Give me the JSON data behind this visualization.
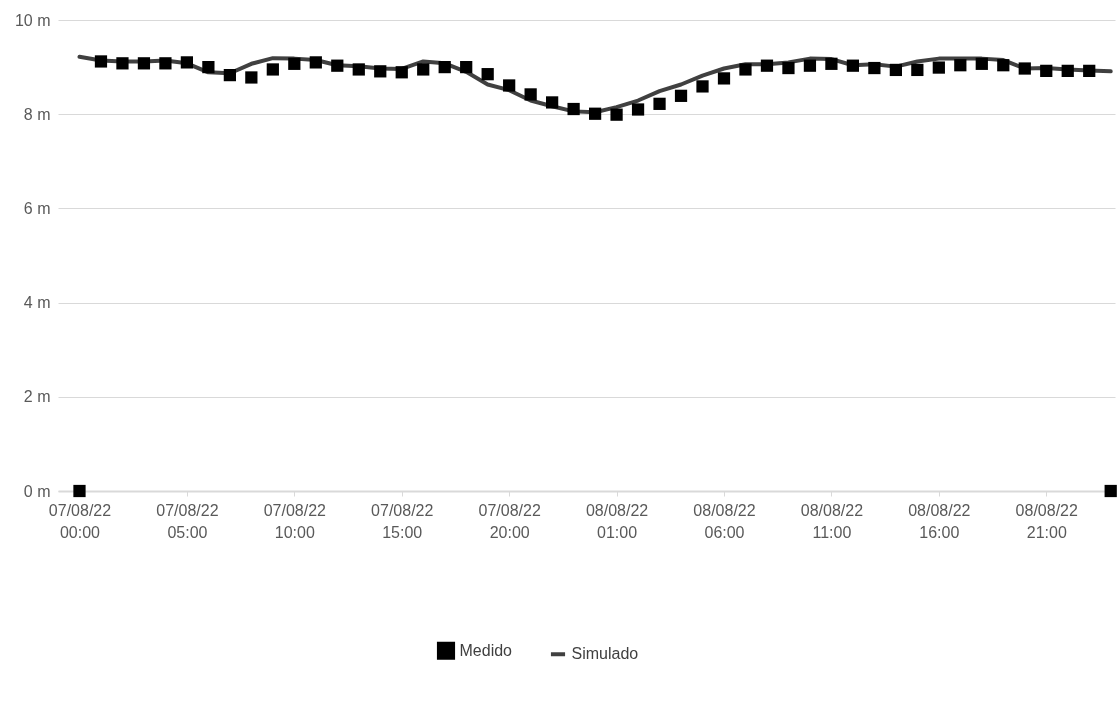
{
  "chart_data": {
    "type": "line",
    "categories": [
      "07/08/22 00:00",
      null,
      null,
      null,
      null,
      "07/08/22 05:00",
      null,
      null,
      null,
      null,
      "07/08/22 10:00",
      null,
      null,
      null,
      null,
      "07/08/22 15:00",
      null,
      null,
      null,
      null,
      "07/08/22 20:00",
      null,
      null,
      null,
      null,
      "08/08/22 01:00",
      null,
      null,
      null,
      null,
      "08/08/22 06:00",
      null,
      null,
      null,
      null,
      "08/08/22 11:00",
      null,
      null,
      null,
      null,
      "08/08/22 16:00",
      null,
      null,
      null,
      null,
      "08/08/22 21:00",
      null,
      null,
      null
    ],
    "series": [
      {
        "name": "Medido",
        "type": "scatter",
        "marker": "square",
        "color": "#000000",
        "values": [
          0,
          9.12,
          9.08,
          9.08,
          9.08,
          9.1,
          9.0,
          8.83,
          8.78,
          8.95,
          9.07,
          9.1,
          9.03,
          8.95,
          8.91,
          8.89,
          8.95,
          9.0,
          9.0,
          8.85,
          8.61,
          8.42,
          8.25,
          8.11,
          8.01,
          7.99,
          8.1,
          8.22,
          8.39,
          8.59,
          8.76,
          8.95,
          9.03,
          8.98,
          9.03,
          9.07,
          9.03,
          8.98,
          8.94,
          8.94,
          8.99,
          9.04,
          9.07,
          9.04,
          8.97,
          8.92,
          8.92,
          8.92,
          0
        ]
      },
      {
        "name": "Simulado",
        "type": "line",
        "color": "#404040",
        "line_style": "solid",
        "values": [
          9.22,
          9.14,
          9.12,
          9.12,
          9.14,
          9.08,
          8.89,
          8.87,
          9.07,
          9.19,
          9.18,
          9.15,
          9.04,
          9.02,
          8.97,
          8.96,
          9.12,
          9.08,
          8.9,
          8.63,
          8.51,
          8.29,
          8.17,
          8.06,
          8.04,
          8.15,
          8.29,
          8.49,
          8.63,
          8.82,
          8.97,
          9.06,
          9.06,
          9.1,
          9.18,
          9.17,
          9.04,
          9.06,
          9.01,
          9.12,
          9.18,
          9.18,
          9.18,
          9.15,
          8.97,
          8.98,
          8.95,
          8.93,
          8.91
        ]
      }
    ],
    "ylim": [
      0,
      10
    ],
    "yticks": [
      {
        "value": 0,
        "label": "0 m"
      },
      {
        "value": 2,
        "label": "2 m"
      },
      {
        "value": 4,
        "label": "4 m"
      },
      {
        "value": 6,
        "label": "6 m"
      },
      {
        "value": 8,
        "label": "8 m"
      },
      {
        "value": 10,
        "label": "10 m"
      }
    ],
    "grid": "y",
    "legend": "bottom"
  }
}
